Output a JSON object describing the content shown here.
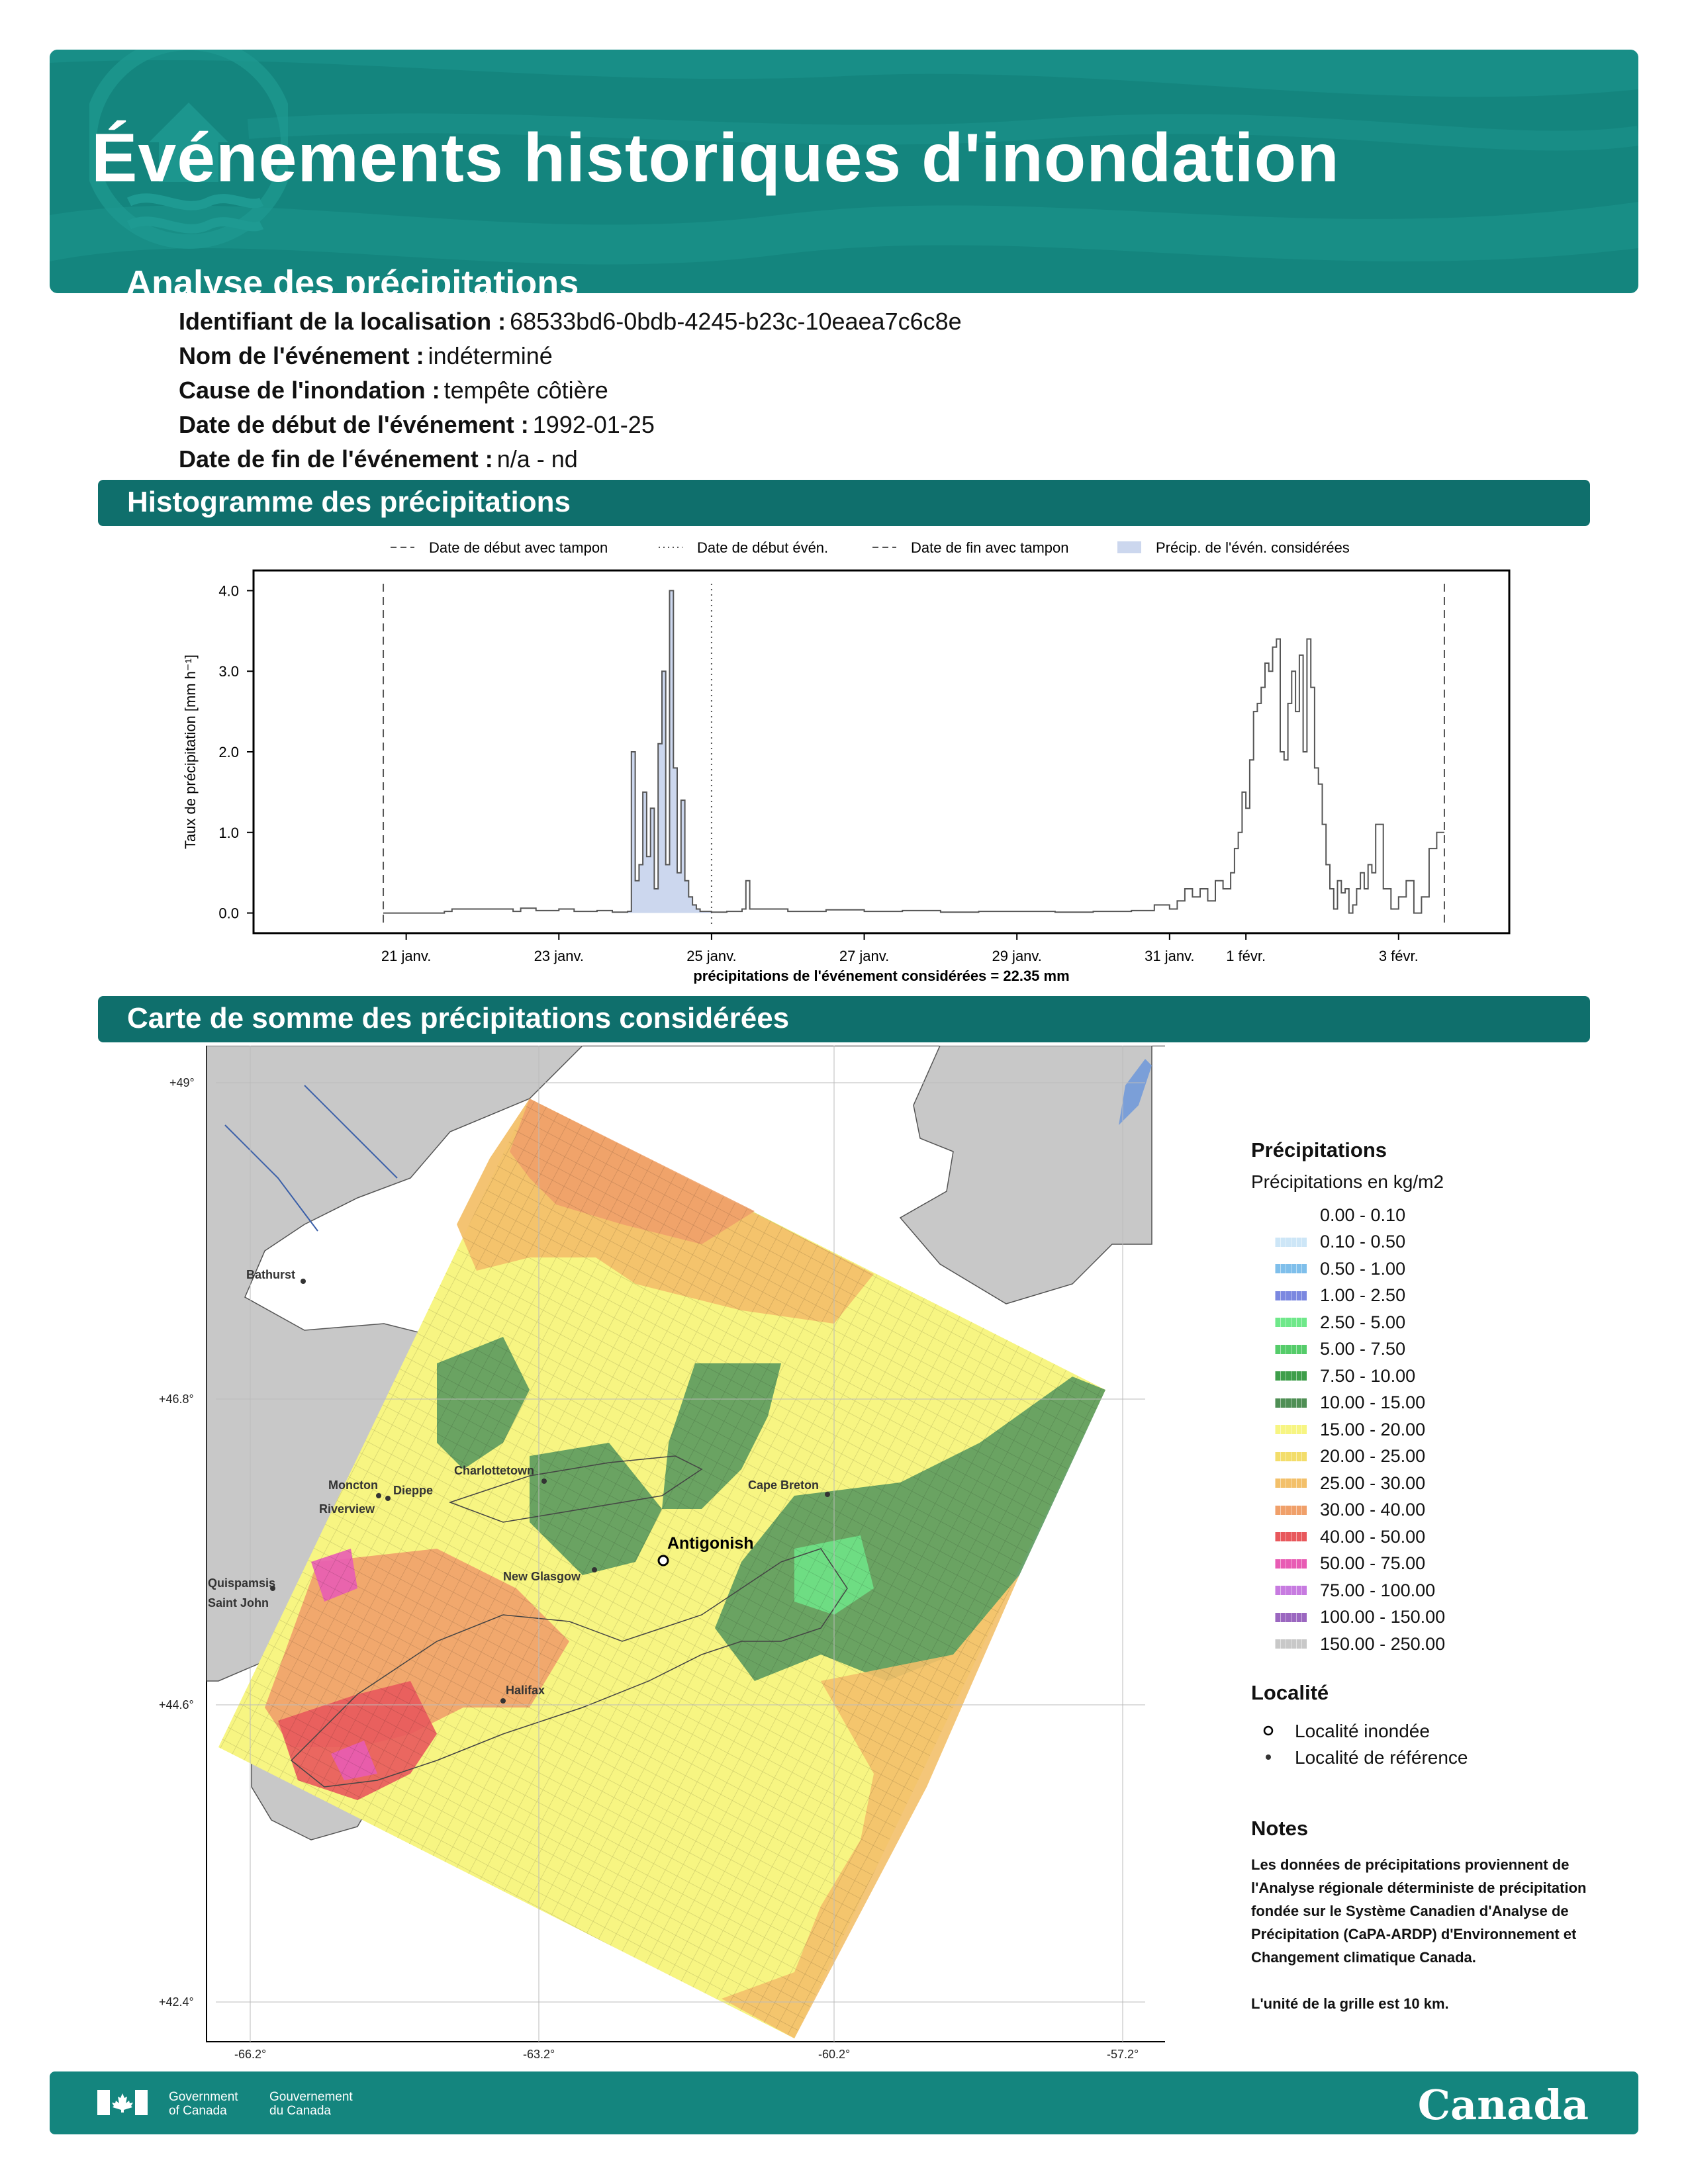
{
  "header": {
    "title": "Événements historiques d'inondation",
    "subtitle": "Analyse des précipitations"
  },
  "info": {
    "location_id_label": "Identifiant de la localisation :",
    "location_id_value": "68533bd6-0bdb-4245-b23c-10eaea7c6c8e",
    "event_name_label": "Nom de l'événement :",
    "event_name_value": "indéterminé",
    "cause_label": "Cause de l'inondation :",
    "cause_value": "tempête côtière",
    "start_label": "Date de début de l'événement :",
    "start_value": "1992-01-25",
    "end_label": "Date de fin de l'événement :",
    "end_value": "n/a - nd"
  },
  "sections": {
    "histogram": "Histogramme des précipitations",
    "map": "Carte de somme des précipitations considérées"
  },
  "chart_data": {
    "type": "area",
    "ylabel": "Taux de précipitation [mm h⁻¹]",
    "xlabel": "précipitations de l'événement considérées = 22.35 mm",
    "ylim": [
      -0.25,
      4.25
    ],
    "yticks": [
      "0.0",
      "1.0",
      "2.0",
      "3.0",
      "4.0"
    ],
    "yticks_values": [
      0,
      1,
      2,
      3,
      4
    ],
    "xlim_days": [
      19.0,
      35.45
    ],
    "xticks": [
      {
        "label": "21 janv.",
        "day": 21
      },
      {
        "label": "23 janv.",
        "day": 23
      },
      {
        "label": "25 janv.",
        "day": 25
      },
      {
        "label": "27 janv.",
        "day": 27
      },
      {
        "label": "29 janv.",
        "day": 29
      },
      {
        "label": "31 janv.",
        "day": 31
      },
      {
        "label": "1 févr.",
        "day": 32
      },
      {
        "label": "3 févr.",
        "day": 34
      }
    ],
    "legend": [
      {
        "label": "Date de début avec tampon",
        "style": "dashed"
      },
      {
        "label": "Date de début évén.",
        "style": "dotted"
      },
      {
        "label": "Date de fin avec tampon",
        "style": "dashed"
      },
      {
        "label": "Précip. de l'évén. considérées",
        "style": "fill"
      }
    ],
    "vlines": [
      {
        "day": 20.7,
        "style": "dashed"
      },
      {
        "day": 25.0,
        "style": "dotted"
      },
      {
        "day": 34.6,
        "style": "dashed"
      }
    ],
    "shade_range": [
      23.9,
      25.0
    ],
    "series": [
      {
        "x": [
          20.7,
          21.5,
          21.6,
          22.0,
          22.4,
          22.5,
          22.7,
          23.0,
          23.2,
          23.5,
          23.7,
          23.9,
          23.95,
          24.0,
          24.05,
          24.1,
          24.15,
          24.2,
          24.25,
          24.3,
          24.35,
          24.4,
          24.45,
          24.5,
          24.55,
          24.6,
          24.65,
          24.7,
          24.75,
          24.8,
          24.85,
          24.9,
          25.0,
          25.2,
          25.4,
          25.45,
          25.5,
          26.0,
          26.5,
          27.0,
          27.5,
          28.0,
          28.5,
          29.0,
          29.5,
          30.0,
          30.5,
          30.8,
          31.0,
          31.1,
          31.2,
          31.3,
          31.4,
          31.5,
          31.6,
          31.7,
          31.8,
          31.85,
          31.9,
          31.95,
          32.0,
          32.05,
          32.1,
          32.15,
          32.2,
          32.25,
          32.3,
          32.35,
          32.4,
          32.45,
          32.5,
          32.55,
          32.6,
          32.65,
          32.7,
          32.75,
          32.8,
          32.85,
          32.9,
          32.95,
          33.0,
          33.05,
          33.1,
          33.15,
          33.2,
          33.25,
          33.3,
          33.35,
          33.4,
          33.45,
          33.5,
          33.55,
          33.6,
          33.65,
          33.7,
          33.8,
          33.9,
          34.0,
          34.1,
          34.2,
          34.3,
          34.4,
          34.5,
          34.6
        ],
        "y": [
          0.0,
          0.02,
          0.05,
          0.05,
          0.02,
          0.06,
          0.03,
          0.05,
          0.02,
          0.03,
          0.01,
          0.02,
          2.0,
          0.4,
          0.6,
          1.5,
          0.7,
          1.3,
          0.3,
          2.1,
          3.0,
          0.6,
          4.0,
          1.8,
          0.5,
          1.4,
          0.4,
          0.2,
          0.1,
          0.05,
          0.02,
          0.02,
          0.01,
          0.02,
          0.05,
          0.4,
          0.05,
          0.02,
          0.04,
          0.02,
          0.03,
          0.01,
          0.02,
          0.02,
          0.01,
          0.02,
          0.03,
          0.1,
          0.05,
          0.15,
          0.3,
          0.2,
          0.3,
          0.15,
          0.4,
          0.3,
          0.5,
          0.8,
          1.0,
          1.5,
          1.3,
          1.9,
          2.5,
          2.6,
          2.8,
          3.1,
          3.0,
          3.3,
          3.4,
          2.0,
          1.9,
          2.6,
          3.0,
          2.5,
          3.2,
          2.0,
          3.4,
          2.8,
          1.8,
          1.6,
          1.1,
          0.6,
          0.3,
          0.05,
          0.4,
          0.25,
          0.3,
          0.0,
          0.1,
          0.3,
          0.5,
          0.3,
          0.6,
          0.5,
          1.1,
          0.3,
          0.05,
          0.2,
          0.4,
          0.0,
          0.2,
          0.8,
          1.0,
          1.0
        ]
      }
    ]
  },
  "map": {
    "lat_labels": [
      "+49°",
      "+46.8°",
      "+44.6°",
      "+42.4°"
    ],
    "lon_labels": [
      "-66.2°",
      "-63.2°",
      "-60.2°",
      "-57.2°"
    ],
    "places": [
      "Bathurst",
      "Moncton",
      "Dieppe",
      "Riverview",
      "Charlottetown",
      "Cape Breton",
      "Antigonish",
      "New Glasgow",
      "Quispamsis",
      "Saint John",
      "Halifax"
    ]
  },
  "legend": {
    "title": "Précipitations",
    "subtitle": "Précipitations en kg/m2",
    "items": [
      {
        "label": "0.00 - 0.10",
        "color": "#ffffff"
      },
      {
        "label": "0.10 - 0.50",
        "color": "#cde6f7"
      },
      {
        "label": "0.50 - 1.00",
        "color": "#7fbfeb"
      },
      {
        "label": "1.00 - 2.50",
        "color": "#7b88e0"
      },
      {
        "label": "2.50 - 5.00",
        "color": "#6fe88a"
      },
      {
        "label": "5.00 - 7.50",
        "color": "#55cc6a"
      },
      {
        "label": "7.50 - 10.00",
        "color": "#3e9e4a"
      },
      {
        "label": "10.00 - 15.00",
        "color": "#4f8f55"
      },
      {
        "label": "15.00 - 20.00",
        "color": "#f7f582"
      },
      {
        "label": "20.00 - 25.00",
        "color": "#f3dd6a"
      },
      {
        "label": "25.00 - 30.00",
        "color": "#f3c06a"
      },
      {
        "label": "30.00 - 40.00",
        "color": "#f0a06a"
      },
      {
        "label": "40.00 - 50.00",
        "color": "#e8585c"
      },
      {
        "label": "50.00 - 75.00",
        "color": "#e85cb4"
      },
      {
        "label": "75.00 - 100.00",
        "color": "#c77be0"
      },
      {
        "label": "100.00 - 150.00",
        "color": "#9b67c0"
      },
      {
        "label": "150.00 - 250.00",
        "color": "#c8c8c8"
      }
    ]
  },
  "locality": {
    "title": "Localité",
    "flooded": "Localité inondée",
    "reference": "Localité de référence"
  },
  "notes": {
    "title": "Notes",
    "text": "Les données de précipitations proviennent de l'Analyse régionale déterministe de précipitation fondée sur le Système Canadien d'Analyse de Précipitation (CaPA-ARDP) d'Environnement et Changement climatique Canada.",
    "grid": "L'unité de la grille est 10 km."
  },
  "footer": {
    "gov_en_1": "Government",
    "gov_en_2": "of Canada",
    "gov_fr_1": "Gouvernement",
    "gov_fr_2": "du Canada",
    "wordmark": "Canada"
  }
}
